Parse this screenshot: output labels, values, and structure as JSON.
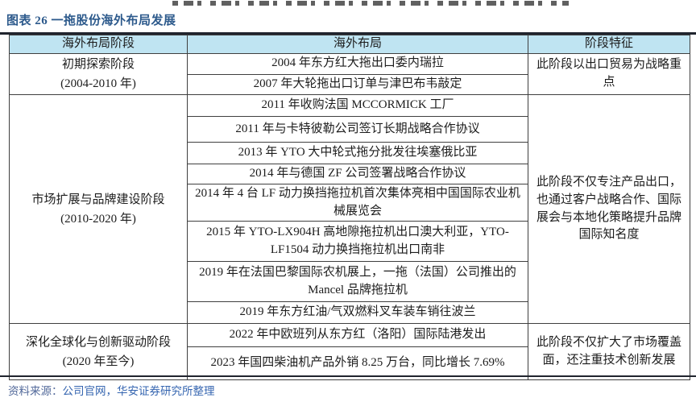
{
  "page": {
    "title": "图表 26 一拖股份海外布局发展",
    "source_label": "资料来源：",
    "source_text": "公司官网，华安证券研究所整理"
  },
  "colors": {
    "title": "#2D5A8C",
    "header_bg": "#BFE4F2",
    "rule": "#20242E",
    "source_label": "#52699A",
    "source_text": "#3565B0"
  },
  "table": {
    "headers": [
      "海外布局阶段",
      "海外布局",
      "阶段特征"
    ],
    "phases": [
      {
        "stage": "初期探索阶段",
        "period": "(2004-2010 年)",
        "feature": "此阶段以出口贸易为战略重点",
        "events": [
          "2004 年东方红大拖出口委内瑞拉",
          "2007 年大轮拖出口订单与津巴布韦敲定"
        ]
      },
      {
        "stage": "市场扩展与品牌建设阶段",
        "period": "(2010-2020 年)",
        "feature": "此阶段不仅专注产品出口，也通过客户战略合作、国际展会与本地化策略提升品牌国际知名度",
        "events": [
          "2011 年收购法国 MCCORMICK 工厂",
          "2011 年与卡特彼勒公司签订长期战略合作协议",
          "2013 年 YTO 大中轮式拖分批发往埃塞俄比亚",
          "2014 年与德国 ZF 公司签署战略合作协议",
          "2014 年 4 台 LF 动力换挡拖拉机首次集体亮相中国国际农业机械展览会",
          "2015 年 YTO-LX904H 高地隙拖拉机出口澳大利亚，YTO-LF1504 动力换挡拖拉机出口南非",
          "2019 年在法国巴黎国际农机展上，一拖（法国）公司推出的 Mancel 品牌拖拉机",
          "2019 年东方红油/气双燃料叉车装车销往波兰"
        ]
      },
      {
        "stage": "深化全球化与创新驱动阶段",
        "period": "(2020 年至今)",
        "feature": "此阶段不仅扩大了市场覆盖面，还注重技术创新发展",
        "events": [
          "2022 年中欧班列从东方红（洛阳）国际陆港发出",
          "2023 年国四柴油机产品外销 8.25 万台，同比增长 7.69%"
        ]
      }
    ]
  }
}
